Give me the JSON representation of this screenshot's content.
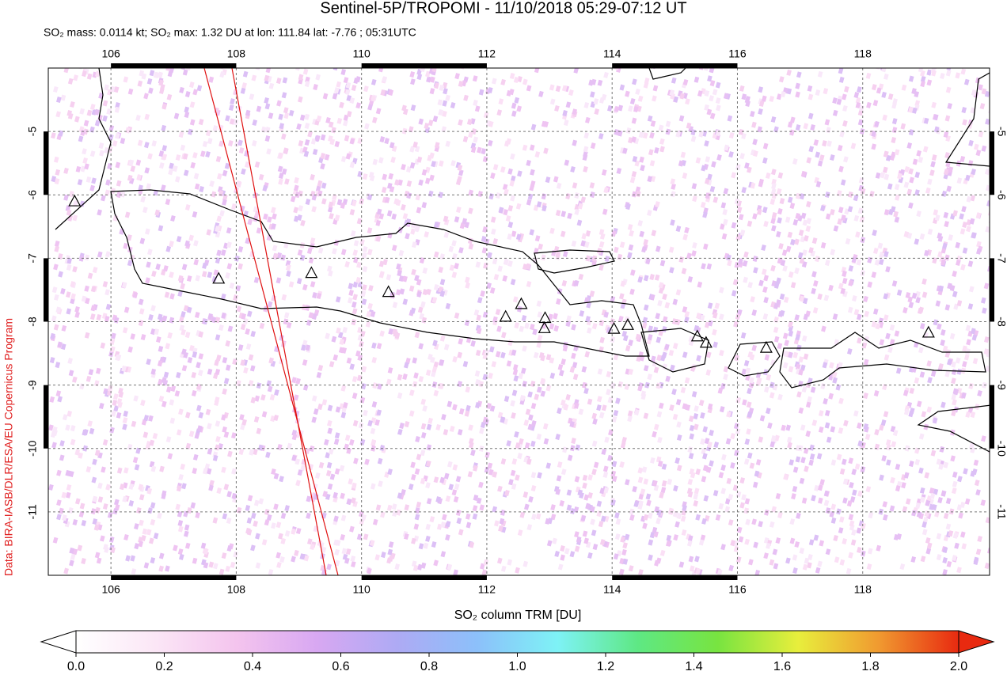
{
  "chart_data": {
    "type": "map",
    "title": "Sentinel-5P/TROPOMI - 11/10/2018 05:29-07:12 UT",
    "subtitle": "SO₂ mass: 0.0114 kt; SO₂ max: 1.32 DU at lon: 111.84 lat: -7.76 ; 05:31UTC",
    "credit": "Data: BIRA-IASB/DLR/ESA/EU Copernicus Program",
    "xlim": [
      105,
      120
    ],
    "ylim": [
      -12,
      -4
    ],
    "xticks": [
      106,
      108,
      110,
      112,
      114,
      116,
      118
    ],
    "yticks": [
      -5,
      -6,
      -7,
      -8,
      -9,
      -10,
      -11
    ],
    "grid": true,
    "volcanoes": {
      "lon": [
        107.72,
        109.2,
        110.43,
        112.3,
        112.55,
        112.93,
        112.92,
        114.03,
        114.25,
        115.36,
        115.5,
        116.46,
        119.05,
        105.42
      ],
      "lat": [
        -7.33,
        -7.24,
        -7.54,
        -7.93,
        -7.73,
        -7.95,
        -8.11,
        -8.12,
        -8.06,
        -8.24,
        -8.34,
        -8.42,
        -8.18,
        -6.11
      ]
    },
    "colorbar": {
      "label": "SO₂ column TRM [DU]",
      "range": [
        0,
        2
      ],
      "ticks": [
        {
          "value": 0,
          "label": "0.0"
        },
        {
          "value": 0.2,
          "label": "0.2"
        },
        {
          "value": 0.4,
          "label": "0.4"
        },
        {
          "value": 0.6,
          "label": "0.6"
        },
        {
          "value": 0.8,
          "label": "0.8"
        },
        {
          "value": 1,
          "label": "1.0"
        },
        {
          "value": 1.2,
          "label": "1.2"
        },
        {
          "value": 1.4,
          "label": "1.4"
        },
        {
          "value": 1.6,
          "label": "1.6"
        },
        {
          "value": 1.8,
          "label": "1.8"
        },
        {
          "value": 2,
          "label": "2.0"
        }
      ],
      "colors": [
        "#ffffff",
        "#fbe6f6",
        "#f4c4ee",
        "#d8a8f2",
        "#aeaaf4",
        "#8cc0fa",
        "#7ef2f6",
        "#5ee884",
        "#78e440",
        "#e8ee3c",
        "#f09a30",
        "#e82a10"
      ]
    }
  }
}
